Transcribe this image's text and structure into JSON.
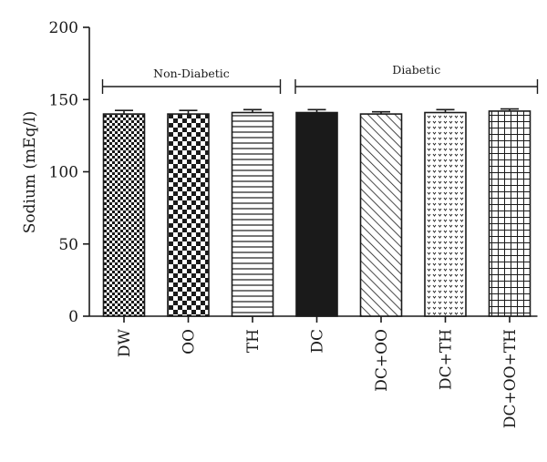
{
  "chart_data": {
    "type": "bar",
    "title": "",
    "xlabel": "",
    "ylabel": "Sodium (mEq/l)",
    "ylim": [
      0,
      200
    ],
    "yticks": [
      0,
      50,
      100,
      150,
      200
    ],
    "grid": false,
    "categories": [
      "DW",
      "OO",
      "TH",
      "DC",
      "DC+OO",
      "DC+TH",
      "DC+OO+TH"
    ],
    "values": [
      140,
      140,
      141,
      141,
      140,
      141,
      142
    ],
    "errors": [
      2.5,
      2.5,
      2,
      2,
      1.5,
      2,
      1.5
    ],
    "patterns": [
      "fine-checker",
      "checker",
      "horizontal-lines",
      "solid-black",
      "diagonal-lines",
      "dots",
      "grid"
    ],
    "groups": [
      {
        "label": "Non-Diabetic",
        "from": 0,
        "to": 2
      },
      {
        "label": "Diabetic",
        "from": 3,
        "to": 6
      }
    ],
    "colors": {
      "ink": "#1a1a1a",
      "background": "#ffffff"
    }
  }
}
